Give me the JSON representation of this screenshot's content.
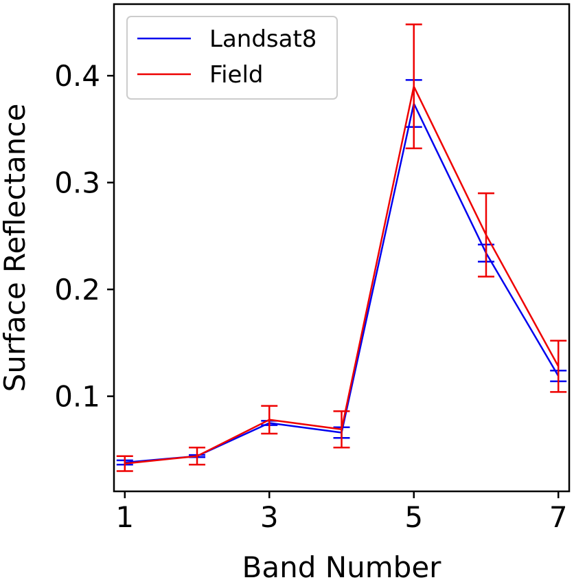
{
  "chart_data": {
    "type": "line",
    "xlabel": "Band Number",
    "ylabel": "Surface Reflectance",
    "xlim": [
      0.85,
      7.15
    ],
    "ylim": [
      0.011,
      0.467
    ],
    "x_ticks": [
      1,
      3,
      5,
      7
    ],
    "y_ticks": [
      0.1,
      0.2,
      0.3,
      0.4
    ],
    "x_tick_labels": [
      "1",
      "3",
      "5",
      "7"
    ],
    "y_tick_labels": [
      "0.1",
      "0.2",
      "0.3",
      "0.4"
    ],
    "grid": false,
    "legend_position": "top-left",
    "series": [
      {
        "name": "Landsat8",
        "color": "#0000ee",
        "x": [
          1,
          2,
          3,
          4,
          5,
          6,
          7
        ],
        "y": [
          0.038,
          0.044,
          0.075,
          0.066,
          0.374,
          0.234,
          0.119
        ],
        "yerr": [
          0.002,
          0.001,
          0.002,
          0.005,
          0.022,
          0.008,
          0.005
        ]
      },
      {
        "name": "Field",
        "color": "#ee0000",
        "x": [
          1,
          2,
          3,
          4,
          5,
          6,
          7
        ],
        "y": [
          0.037,
          0.044,
          0.078,
          0.069,
          0.39,
          0.251,
          0.128
        ],
        "yerr": [
          0.007,
          0.008,
          0.013,
          0.017,
          0.058,
          0.039,
          0.024
        ]
      }
    ]
  }
}
